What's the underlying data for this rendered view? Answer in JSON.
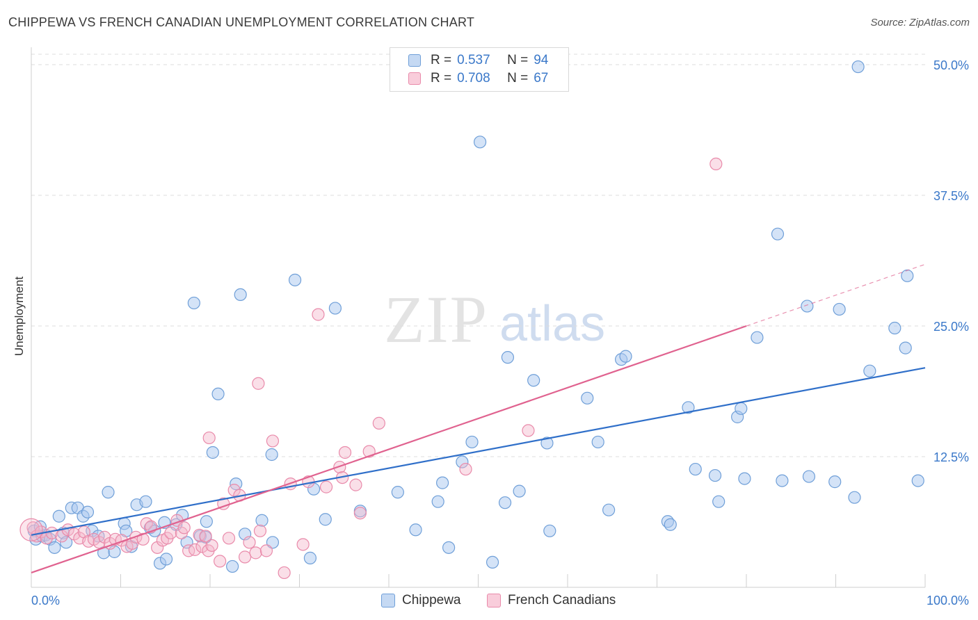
{
  "header": {
    "title": "CHIPPEWA VS FRENCH CANADIAN UNEMPLOYMENT CORRELATION CHART",
    "source": "Source: ZipAtlas.com"
  },
  "watermark": {
    "part1": "ZIP",
    "part2": "atlas"
  },
  "legend": {
    "rows": [
      {
        "r_label": "R =",
        "r_value": "0.537",
        "n_label": "N =",
        "n_value": "94"
      },
      {
        "r_label": "R =",
        "r_value": "0.708",
        "n_label": "N =",
        "n_value": "67"
      }
    ]
  },
  "colors": {
    "chippewa_fill": "#a9c8ef",
    "chippewa_stroke": "#6f9fd8",
    "chippewa_line": "#2f6fc9",
    "french_fill": "#f5b8cc",
    "french_stroke": "#e98aaa",
    "french_line": "#e0628f",
    "tick_label": "#3a78c9",
    "grid": "#dcdcdc"
  },
  "chart_data": {
    "type": "scatter",
    "ylabel": "Unemployment",
    "x_tick_labels": [
      "0.0%",
      "100.0%"
    ],
    "y_ticks": [
      12.5,
      25.0,
      37.5,
      50.0
    ],
    "y_tick_labels": [
      "12.5%",
      "25.0%",
      "37.5%",
      "50.0%"
    ],
    "xlim": [
      0,
      100
    ],
    "ylim": [
      0,
      51
    ],
    "grid": "horizontal dashed",
    "legend_position": "bottom",
    "series": [
      {
        "name": "Chippewa",
        "trend": {
          "x0": 0,
          "y0": 5.0,
          "x1": 100,
          "y1": 21.0
        },
        "points": [
          [
            0.3,
            5.4
          ],
          [
            0.5,
            4.6
          ],
          [
            1.2,
            4.9
          ],
          [
            1.6,
            5.0
          ],
          [
            2.1,
            4.6
          ],
          [
            2.6,
            3.8
          ],
          [
            3.1,
            6.8
          ],
          [
            3.6,
            5.2
          ],
          [
            3.9,
            4.3
          ],
          [
            4.5,
            7.6
          ],
          [
            5.2,
            7.6
          ],
          [
            5.8,
            6.8
          ],
          [
            6.3,
            7.2
          ],
          [
            6.8,
            5.4
          ],
          [
            7.5,
            4.9
          ],
          [
            8.1,
            3.3
          ],
          [
            8.6,
            9.1
          ],
          [
            9.3,
            3.4
          ],
          [
            10.4,
            6.1
          ],
          [
            10.6,
            5.4
          ],
          [
            11.2,
            3.9
          ],
          [
            11.8,
            7.9
          ],
          [
            12.8,
            8.2
          ],
          [
            13.3,
            5.7
          ],
          [
            13.8,
            5.4
          ],
          [
            14.4,
            2.3
          ],
          [
            14.9,
            6.2
          ],
          [
            15.1,
            2.7
          ],
          [
            16.2,
            6.0
          ],
          [
            16.9,
            6.9
          ],
          [
            17.4,
            4.3
          ],
          [
            18.2,
            27.2
          ],
          [
            18.9,
            4.9
          ],
          [
            19.5,
            4.8
          ],
          [
            19.6,
            6.3
          ],
          [
            20.3,
            12.9
          ],
          [
            20.9,
            18.5
          ],
          [
            22.5,
            2.0
          ],
          [
            22.9,
            9.9
          ],
          [
            23.4,
            28.0
          ],
          [
            23.9,
            5.1
          ],
          [
            25.8,
            6.4
          ],
          [
            26.9,
            12.7
          ],
          [
            27.0,
            4.3
          ],
          [
            29.5,
            29.4
          ],
          [
            31.2,
            2.8
          ],
          [
            31.6,
            9.4
          ],
          [
            32.9,
            6.5
          ],
          [
            34.0,
            26.7
          ],
          [
            36.8,
            7.3
          ],
          [
            41.0,
            9.1
          ],
          [
            43.0,
            5.5
          ],
          [
            45.5,
            8.2
          ],
          [
            46.0,
            10.0
          ],
          [
            46.7,
            3.8
          ],
          [
            48.2,
            12.0
          ],
          [
            49.3,
            13.9
          ],
          [
            50.2,
            42.6
          ],
          [
            51.6,
            2.4
          ],
          [
            53.0,
            8.1
          ],
          [
            53.3,
            22.0
          ],
          [
            54.6,
            9.2
          ],
          [
            56.2,
            19.8
          ],
          [
            57.7,
            13.8
          ],
          [
            58.0,
            5.4
          ],
          [
            62.2,
            18.1
          ],
          [
            63.4,
            13.9
          ],
          [
            64.6,
            7.4
          ],
          [
            66.0,
            21.8
          ],
          [
            66.5,
            22.1
          ],
          [
            71.2,
            6.3
          ],
          [
            71.5,
            6.0
          ],
          [
            73.5,
            17.2
          ],
          [
            74.3,
            11.3
          ],
          [
            76.5,
            10.7
          ],
          [
            76.9,
            8.2
          ],
          [
            79.0,
            16.3
          ],
          [
            79.4,
            17.1
          ],
          [
            79.8,
            10.4
          ],
          [
            81.2,
            23.9
          ],
          [
            84.0,
            10.2
          ],
          [
            83.5,
            33.8
          ],
          [
            86.8,
            26.9
          ],
          [
            87.0,
            10.6
          ],
          [
            89.9,
            10.1
          ],
          [
            90.4,
            26.6
          ],
          [
            92.1,
            8.6
          ],
          [
            92.5,
            49.8
          ],
          [
            93.8,
            20.7
          ],
          [
            96.6,
            24.8
          ],
          [
            97.8,
            22.9
          ],
          [
            98.0,
            29.8
          ],
          [
            99.2,
            10.2
          ],
          [
            1.0,
            5.8
          ]
        ]
      },
      {
        "name": "French Canadians",
        "trend": {
          "x0": 0,
          "y0": 1.4,
          "x1": 80,
          "y1": 25.0
        },
        "trend_extension": {
          "x0": 80,
          "y0": 25.0,
          "x1": 100,
          "y1": 30.9
        },
        "points": [
          [
            0.2,
            5.7
          ],
          [
            0.6,
            4.9
          ],
          [
            1.1,
            5.3
          ],
          [
            1.7,
            4.7
          ],
          [
            2.3,
            5.2
          ],
          [
            3.4,
            4.9
          ],
          [
            4.1,
            5.5
          ],
          [
            4.8,
            5.1
          ],
          [
            5.4,
            4.7
          ],
          [
            5.9,
            5.3
          ],
          [
            6.4,
            4.4
          ],
          [
            7.0,
            4.6
          ],
          [
            7.6,
            4.3
          ],
          [
            8.2,
            4.8
          ],
          [
            8.8,
            4.2
          ],
          [
            9.4,
            4.6
          ],
          [
            10.1,
            4.5
          ],
          [
            10.7,
            3.9
          ],
          [
            11.3,
            4.2
          ],
          [
            11.7,
            4.8
          ],
          [
            12.5,
            4.6
          ],
          [
            12.9,
            6.1
          ],
          [
            13.4,
            5.8
          ],
          [
            14.1,
            3.8
          ],
          [
            14.7,
            4.5
          ],
          [
            15.2,
            4.7
          ],
          [
            15.6,
            5.2
          ],
          [
            16.3,
            6.4
          ],
          [
            16.8,
            5.2
          ],
          [
            17.1,
            5.7
          ],
          [
            17.6,
            3.5
          ],
          [
            18.3,
            3.6
          ],
          [
            18.8,
            5.0
          ],
          [
            19.1,
            3.9
          ],
          [
            19.5,
            4.9
          ],
          [
            19.8,
            3.5
          ],
          [
            19.9,
            14.3
          ],
          [
            20.2,
            4.0
          ],
          [
            21.1,
            2.5
          ],
          [
            21.5,
            8.0
          ],
          [
            22.1,
            4.7
          ],
          [
            22.7,
            9.3
          ],
          [
            23.3,
            8.8
          ],
          [
            23.9,
            2.9
          ],
          [
            24.4,
            4.3
          ],
          [
            25.1,
            3.3
          ],
          [
            25.6,
            5.4
          ],
          [
            25.4,
            19.5
          ],
          [
            26.3,
            3.5
          ],
          [
            27.0,
            14.0
          ],
          [
            28.3,
            1.4
          ],
          [
            29.0,
            9.9
          ],
          [
            30.4,
            4.1
          ],
          [
            31.0,
            10.1
          ],
          [
            32.1,
            26.1
          ],
          [
            33.0,
            9.6
          ],
          [
            34.5,
            11.5
          ],
          [
            34.8,
            10.5
          ],
          [
            35.1,
            12.9
          ],
          [
            36.3,
            9.8
          ],
          [
            36.8,
            7.1
          ],
          [
            37.8,
            13.0
          ],
          [
            38.9,
            15.7
          ],
          [
            48.6,
            11.3
          ],
          [
            55.6,
            15.0
          ],
          [
            76.6,
            40.5
          ],
          [
            0.0,
            5.5
          ]
        ]
      }
    ]
  }
}
